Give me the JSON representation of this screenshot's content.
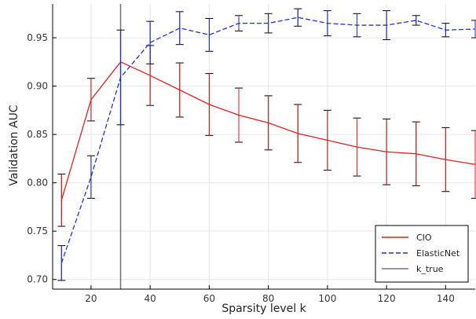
{
  "chart_data": {
    "type": "line",
    "xlabel": "Sparsity level k",
    "ylabel": "Validation AUC",
    "xlim": [
      7,
      150
    ],
    "ylim": [
      0.69,
      0.985
    ],
    "xticks": [
      20,
      40,
      60,
      80,
      100,
      120,
      140
    ],
    "yticks": [
      0.7,
      0.75,
      0.8,
      0.85,
      0.9,
      0.95
    ],
    "grid": true,
    "legend_position": "bottom-right",
    "vline": {
      "name": "k_true",
      "x": 30,
      "color": "#777777"
    },
    "series": [
      {
        "name": "CIO",
        "color": "#dd2222",
        "style": "solid",
        "x": [
          10,
          20,
          30,
          40,
          50,
          60,
          70,
          80,
          90,
          100,
          110,
          120,
          130,
          140,
          150
        ],
        "y": [
          0.782,
          0.886,
          0.925,
          0.911,
          0.896,
          0.881,
          0.87,
          0.862,
          0.851,
          0.844,
          0.837,
          0.832,
          0.83,
          0.824,
          0.819
        ],
        "err": [
          0.027,
          0.022,
          0.0,
          0.031,
          0.028,
          0.032,
          0.028,
          0.028,
          0.03,
          0.031,
          0.03,
          0.034,
          0.033,
          0.033,
          0.035
        ]
      },
      {
        "name": "ElasticNet",
        "color": "#2233cc",
        "style": "dashed",
        "x": [
          10,
          20,
          30,
          40,
          50,
          60,
          70,
          80,
          90,
          100,
          110,
          120,
          130,
          140,
          150
        ],
        "y": [
          0.717,
          0.806,
          0.909,
          0.945,
          0.96,
          0.953,
          0.965,
          0.965,
          0.971,
          0.965,
          0.963,
          0.963,
          0.968,
          0.958,
          0.959
        ],
        "err": [
          0.018,
          0.022,
          0.049,
          0.022,
          0.017,
          0.017,
          0.008,
          0.01,
          0.009,
          0.013,
          0.012,
          0.015,
          0.005,
          0.007,
          0.009
        ]
      }
    ]
  }
}
